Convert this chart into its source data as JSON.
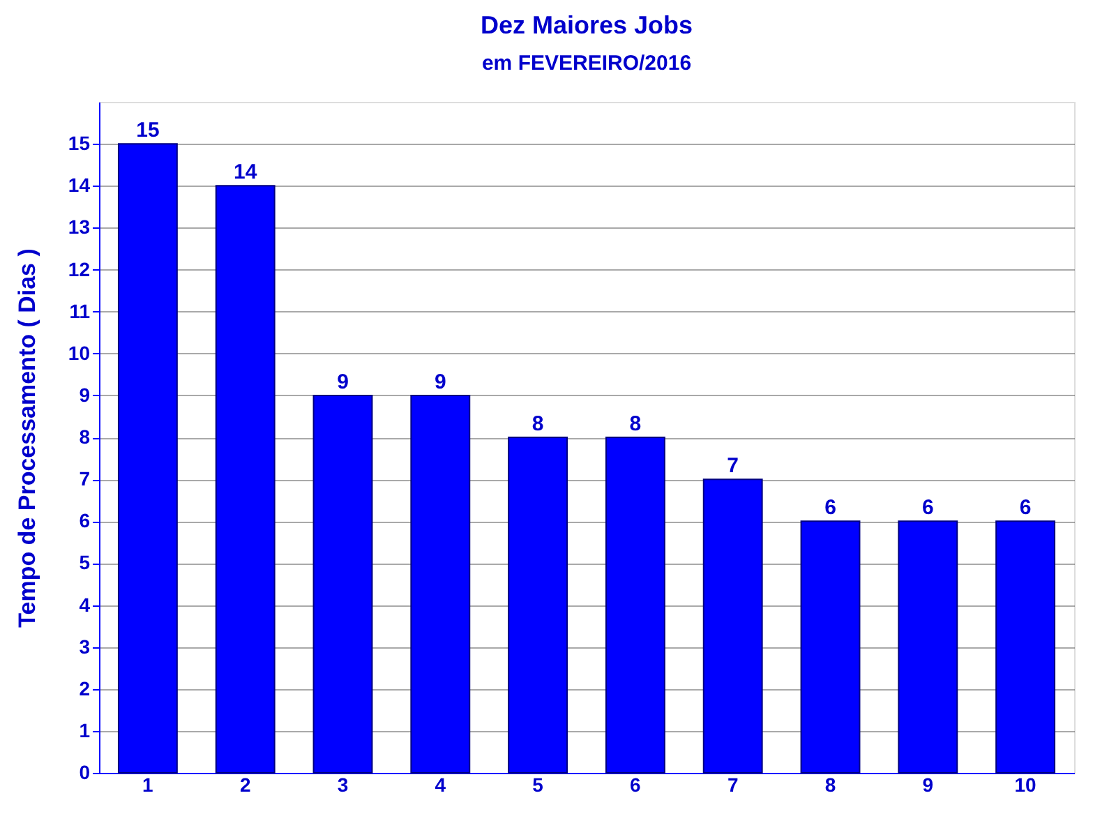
{
  "chart_data": {
    "type": "bar",
    "title": "Dez Maiores Jobs",
    "subtitle": "em FEVEREIRO/2016",
    "ylabel": "Tempo de Processamento ( Dias )",
    "categories": [
      "1",
      "2",
      "3",
      "4",
      "5",
      "6",
      "7",
      "8",
      "9",
      "10"
    ],
    "values": [
      15,
      14,
      9,
      9,
      8,
      8,
      7,
      6,
      6,
      6
    ],
    "color": "#0000ff",
    "ylim": [
      0,
      16
    ],
    "yticks": [
      0,
      1,
      2,
      3,
      4,
      5,
      6,
      7,
      8,
      9,
      10,
      11,
      12,
      13,
      14,
      15
    ],
    "grid": "y",
    "data_labels": true
  }
}
